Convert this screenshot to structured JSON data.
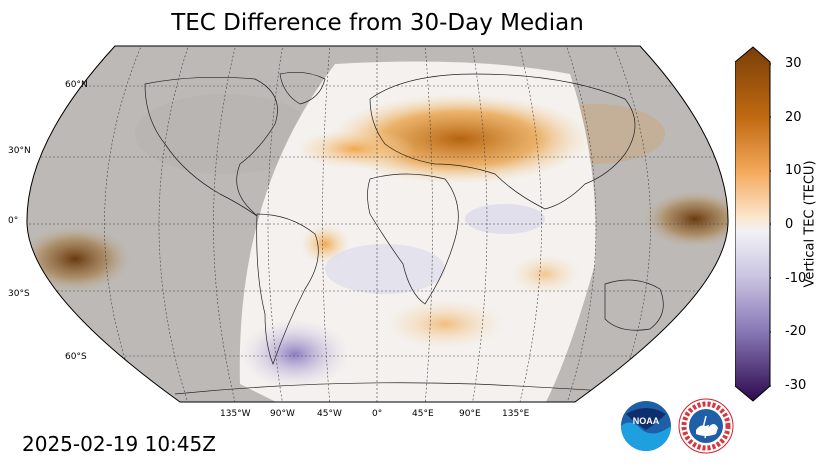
{
  "title": "TEC Difference from 30-Day Median",
  "timestamp": "2025-02-19 10:45Z",
  "lat_labels": [
    "60°N",
    "30°N",
    "0°",
    "30°S",
    "60°S"
  ],
  "lon_labels": [
    "135°W",
    "90°W",
    "45°W",
    "0°",
    "45°E",
    "90°E",
    "135°E"
  ],
  "colorbar": {
    "label": "Vertical TEC (TECU)",
    "ticks": [
      "30",
      "20",
      "10",
      "0",
      "-10",
      "-20",
      "-30"
    ],
    "range": [
      -30,
      30
    ],
    "colors": {
      "max": "#7a3e08",
      "high": "#e8912a",
      "mid": "#f7f7f7",
      "low": "#8a7ab8",
      "min": "#2d0a4e"
    }
  },
  "map": {
    "projection": "Robinson",
    "night_shading": "#bdbdbd",
    "day_region_lon_range": [
      "75°W",
      "105°E"
    ]
  },
  "logos": {
    "noaa": {
      "text": "NOAA",
      "color": "#1f5fa8"
    },
    "nws": {
      "text": "NATIONAL WEATHER SERVICE",
      "color": "#d3202a"
    }
  }
}
